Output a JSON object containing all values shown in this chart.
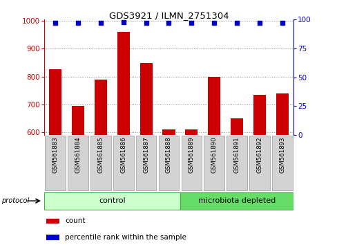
{
  "title": "GDS3921 / ILMN_2751304",
  "categories": [
    "GSM561883",
    "GSM561884",
    "GSM561885",
    "GSM561886",
    "GSM561887",
    "GSM561888",
    "GSM561889",
    "GSM561890",
    "GSM561891",
    "GSM561892",
    "GSM561893"
  ],
  "bar_values": [
    825,
    695,
    790,
    960,
    848,
    608,
    610,
    798,
    648,
    733,
    740
  ],
  "percentile_values": [
    97,
    97,
    97,
    98,
    97,
    97,
    97,
    97,
    97,
    97,
    97
  ],
  "bar_color": "#cc0000",
  "dot_color": "#0000cc",
  "ylim_left": [
    590,
    1005
  ],
  "ylim_right": [
    0,
    100
  ],
  "yticks_left": [
    600,
    700,
    800,
    900,
    1000
  ],
  "yticks_right": [
    0,
    25,
    50,
    75,
    100
  ],
  "left_axis_color": "#cc0000",
  "right_axis_color": "#0000cc",
  "group1_label": "control",
  "group2_label": "microbiota depleted",
  "group1_count": 6,
  "group2_count": 5,
  "protocol_label": "protocol",
  "legend_bar_label": "count",
  "legend_dot_label": "percentile rank within the sample",
  "group1_color": "#ccffcc",
  "group2_color": "#66dd66",
  "grid_color": "#888888",
  "bg_color": "#ffffff",
  "bar_width": 0.55
}
